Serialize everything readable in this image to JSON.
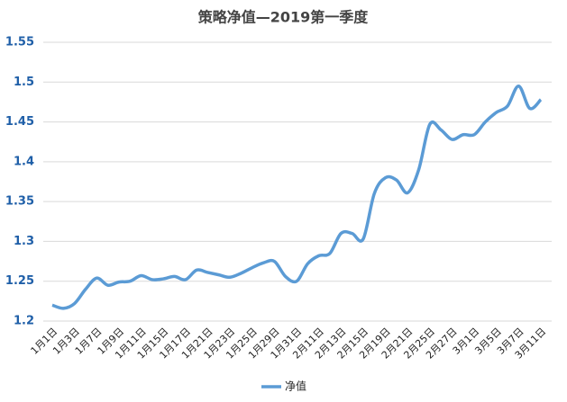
{
  "chart_data": {
    "type": "line",
    "title": "策略净值—2019第一季度",
    "categories": [
      "1月1日",
      null,
      "1月3日",
      null,
      "1月7日",
      null,
      "1月9日",
      null,
      "1月11日",
      null,
      "1月15日",
      null,
      "1月17日",
      null,
      "1月21日",
      null,
      "1月23日",
      null,
      "1月25日",
      null,
      "1月29日",
      null,
      "1月31日",
      null,
      "2月11日",
      null,
      "2月13日",
      null,
      "2月15日",
      null,
      "2月19日",
      null,
      "2月21日",
      null,
      "2月25日",
      null,
      "2月27日",
      null,
      "3月1日",
      null,
      "3月5日",
      null,
      "3月7日",
      null,
      "3月11日"
    ],
    "series": [
      {
        "name": "净值",
        "color": "#5b9bd5",
        "values": [
          1.22,
          1.216,
          1.222,
          1.24,
          1.254,
          1.245,
          1.249,
          1.25,
          1.257,
          1.252,
          1.253,
          1.256,
          1.252,
          1.264,
          1.261,
          1.258,
          1.255,
          1.26,
          1.267,
          1.273,
          1.275,
          1.256,
          1.25,
          1.272,
          1.282,
          1.285,
          1.31,
          1.31,
          1.303,
          1.36,
          1.38,
          1.377,
          1.361,
          1.39,
          1.447,
          1.44,
          1.428,
          1.434,
          1.434,
          1.45,
          1.462,
          1.47,
          1.495,
          1.467,
          1.478
        ]
      }
    ],
    "ylim": [
      1.2,
      1.55
    ],
    "yticks": [
      1.2,
      1.25,
      1.3,
      1.35,
      1.4,
      1.45,
      1.5,
      1.55
    ],
    "grid": true,
    "legend": "bottom"
  }
}
